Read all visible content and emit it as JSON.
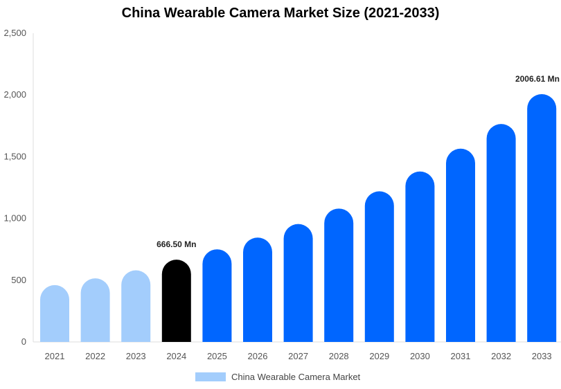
{
  "chart_data": {
    "type": "bar",
    "title": "China Wearable Camera Market Size (2021-2033)",
    "categories": [
      "2021",
      "2022",
      "2023",
      "2024",
      "2025",
      "2026",
      "2027",
      "2028",
      "2029",
      "2030",
      "2031",
      "2032",
      "2033"
    ],
    "series": [
      {
        "name": "China Wearable Camera Market",
        "values": [
          460,
          515,
          580,
          666.5,
          750,
          845,
          955,
          1080,
          1220,
          1380,
          1565,
          1765,
          2006.61
        ]
      }
    ],
    "yticks": [
      "0",
      "500",
      "1,000",
      "1,500",
      "2,000",
      "2,500"
    ],
    "ylim": [
      0,
      2500
    ],
    "data_labels": [
      {
        "category": "2024",
        "text": "666.50 Mn"
      },
      {
        "category": "2033",
        "text": "2006.61 Mn"
      }
    ],
    "bar_colors": {
      "historical": "#a3cdfc",
      "base_year": "#000000",
      "forecast": "#0066ff"
    },
    "historical_categories": [
      "2021",
      "2022",
      "2023"
    ],
    "base_year_category": "2024",
    "legend": {
      "label": "China Wearable Camera Market",
      "color": "#a3cdfc",
      "position": "bottom"
    },
    "grid": false
  }
}
